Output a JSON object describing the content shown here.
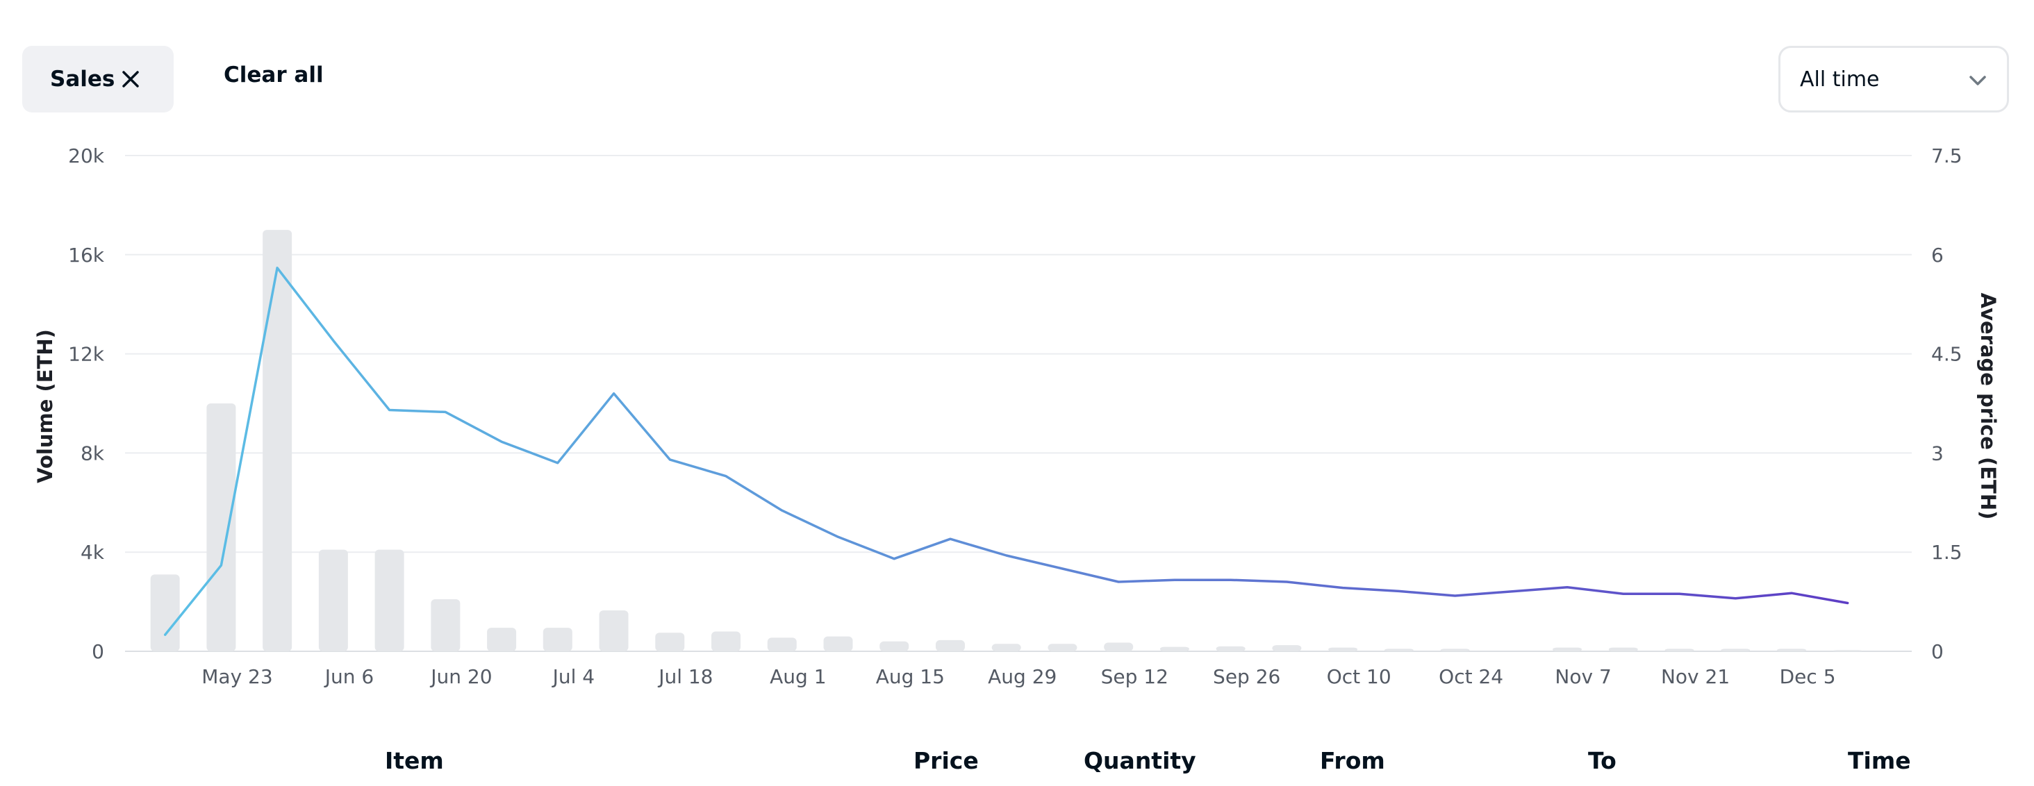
{
  "filters": {
    "chips": [
      {
        "label": "Sales",
        "remove_icon": "close-icon"
      }
    ],
    "clear_all_label": "Clear all"
  },
  "time_select": {
    "value": "All time",
    "icon": "chevron-down-icon"
  },
  "chart_data": {
    "type": "bar+line",
    "x_tick_labels": [
      "May 23",
      "Jun 6",
      "Jun 20",
      "Jul 4",
      "Jul 18",
      "Aug 1",
      "Aug 15",
      "Aug 29",
      "Sep 12",
      "Sep 26",
      "Oct 10",
      "Oct 24",
      "Nov 7",
      "Nov 21",
      "Dec 5"
    ],
    "x_ticks": [
      "2022-05-23",
      "2022-06-06",
      "2022-06-20",
      "2022-07-04",
      "2022-07-18",
      "2022-08-01",
      "2022-08-15",
      "2022-08-29",
      "2022-09-12",
      "2022-09-26",
      "2022-10-10",
      "2022-10-24",
      "2022-11-07",
      "2022-11-21",
      "2022-12-05"
    ],
    "x_range": [
      "2022-05-09",
      "2022-12-18"
    ],
    "x": [
      "2022-05-14",
      "2022-05-21",
      "2022-05-28",
      "2022-06-04",
      "2022-06-11",
      "2022-06-18",
      "2022-06-25",
      "2022-07-02",
      "2022-07-09",
      "2022-07-16",
      "2022-07-23",
      "2022-07-30",
      "2022-08-06",
      "2022-08-13",
      "2022-08-20",
      "2022-08-27",
      "2022-09-03",
      "2022-09-10",
      "2022-09-17",
      "2022-09-24",
      "2022-10-01",
      "2022-10-08",
      "2022-10-15",
      "2022-10-22",
      "2022-11-05",
      "2022-11-12",
      "2022-11-19",
      "2022-11-26",
      "2022-12-03",
      "2022-12-10"
    ],
    "series": [
      {
        "type": "bar",
        "axis": "left",
        "color": "#e5e7ea",
        "values": [
          3100,
          10000,
          17000,
          4100,
          4100,
          2100,
          950,
          950,
          1650,
          750,
          800,
          550,
          600,
          400,
          450,
          300,
          300,
          350,
          180,
          200,
          250,
          150,
          100,
          100,
          150,
          150,
          100,
          100,
          100,
          50
        ]
      },
      {
        "type": "line",
        "axis": "right",
        "colors": [
          "#5bc0e6",
          "#5f8ad6",
          "#5d3bc4"
        ],
        "values": [
          0.25,
          1.3,
          5.8,
          4.7,
          3.65,
          3.62,
          3.17,
          2.85,
          3.9,
          2.9,
          2.65,
          2.13,
          1.73,
          1.4,
          1.7,
          1.45,
          1.25,
          1.05,
          1.08,
          1.08,
          1.05,
          0.96,
          0.91,
          0.84,
          0.97,
          0.87,
          0.87,
          0.8,
          0.88,
          0.73
        ]
      }
    ],
    "y_left": {
      "title": "Volume (ETH)",
      "ticks": [
        "0",
        "4k",
        "8k",
        "12k",
        "16k",
        "20k"
      ],
      "range": [
        0,
        20000
      ]
    },
    "y_right": {
      "title": "Average price (ETH)",
      "ticks": [
        "0",
        "1.5",
        "3",
        "4.5",
        "6",
        "7.5"
      ],
      "range": [
        0,
        7.5
      ]
    },
    "grid": "horizontal"
  },
  "table": {
    "columns": [
      "Item",
      "Price",
      "Quantity",
      "From",
      "To",
      "Time"
    ]
  }
}
